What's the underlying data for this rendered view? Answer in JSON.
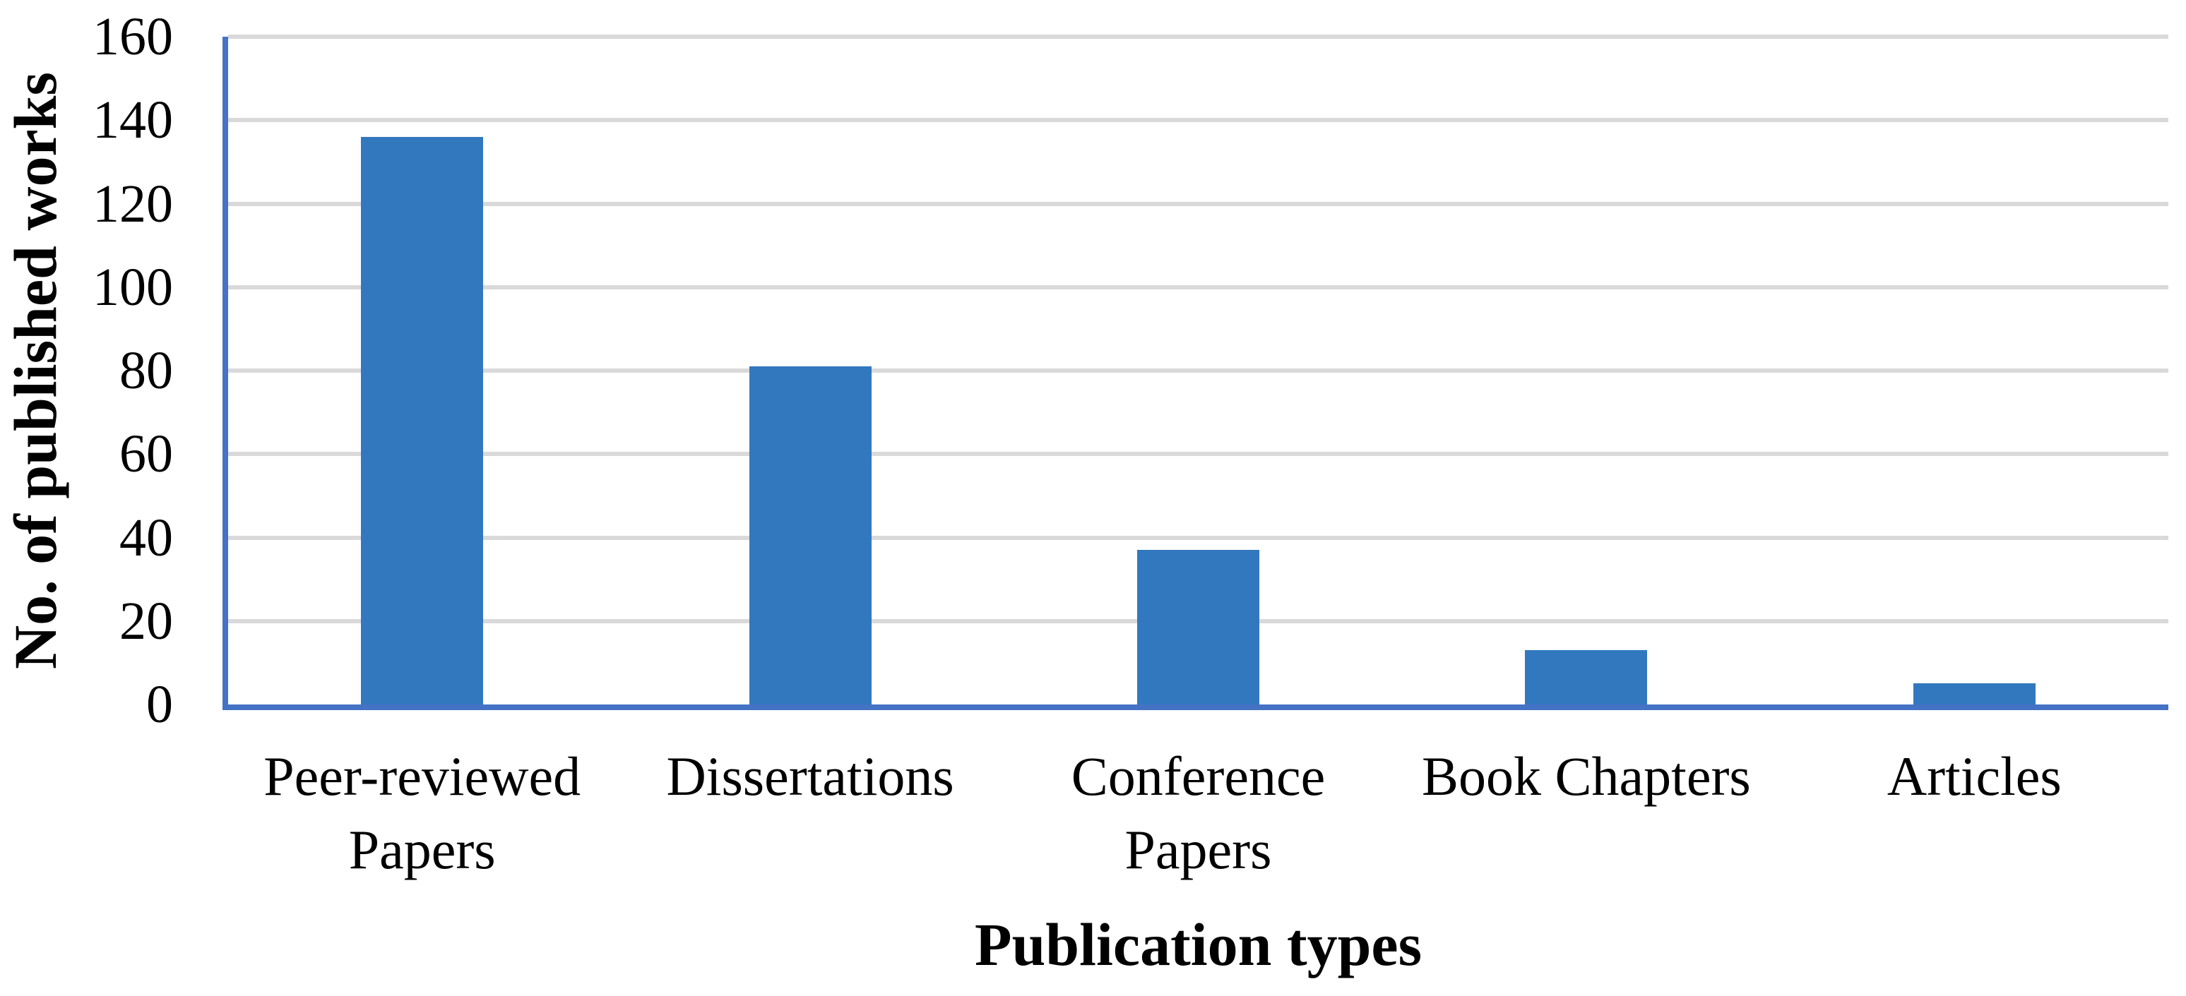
{
  "chart_data": {
    "type": "bar",
    "categories": [
      "Peer-reviewed Papers",
      "Dissertations",
      "Conference Papers",
      "Book Chapters",
      "Articles"
    ],
    "category_label_lines": [
      [
        "Peer-reviewed",
        "Papers"
      ],
      [
        "Dissertations"
      ],
      [
        "Conference",
        "Papers"
      ],
      [
        "Book Chapters"
      ],
      [
        "Articles"
      ]
    ],
    "values": [
      136,
      81,
      37,
      13,
      5
    ],
    "title": "",
    "xlabel": "Publication types",
    "ylabel": "No. of published works",
    "ylim": [
      0,
      160
    ],
    "ytick_step": 20,
    "yticks": [
      "0",
      "20",
      "40",
      "60",
      "80",
      "100",
      "120",
      "140",
      "160"
    ],
    "grid": "horizontal-only",
    "legend": "none",
    "colors": {
      "bar": "#3278BE",
      "axis_line": "#4472C4",
      "gridline": "#D9D9D9",
      "text": "#000000",
      "background": "#FFFFFF"
    }
  }
}
